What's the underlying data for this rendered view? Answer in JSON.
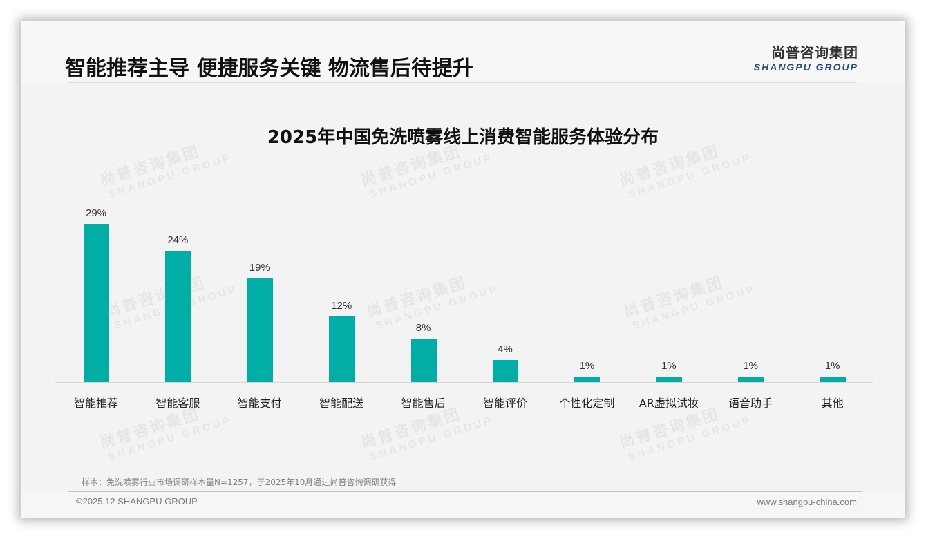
{
  "header": {
    "headline": "智能推荐主导 便捷服务关键 物流售后待提升",
    "logo_cn": "尚普咨询集团",
    "logo_en": "SHANGPU GROUP"
  },
  "watermark": {
    "cn": "尚普咨询集团",
    "en": "SHANGPU GROUP"
  },
  "chart_data": {
    "type": "bar",
    "title": "2025年中国免洗喷雾线上消费智能服务体验分布",
    "categories": [
      "智能推荐",
      "智能客服",
      "智能支付",
      "智能配送",
      "智能售后",
      "智能评价",
      "个性化定制",
      "AR虚拟试妆",
      "语音助手",
      "其他"
    ],
    "values": [
      29,
      24,
      19,
      12,
      8,
      4,
      1,
      1,
      1,
      1
    ],
    "value_labels": [
      "29%",
      "24%",
      "19%",
      "12%",
      "8%",
      "4%",
      "1%",
      "1%",
      "1%",
      "1%"
    ],
    "unit": "%",
    "xlabel": "",
    "ylabel": "",
    "ylim": [
      0,
      30
    ],
    "grid": false,
    "legend": "none",
    "bar_color": "#00aea5"
  },
  "footer": {
    "note": "样本：免洗喷雾行业市场调研样本量N=1257，于2025年10月通过尚普咨询调研获得",
    "copyright": "©2025.12 SHANGPU GROUP",
    "website": "www.shangpu-china.com"
  }
}
